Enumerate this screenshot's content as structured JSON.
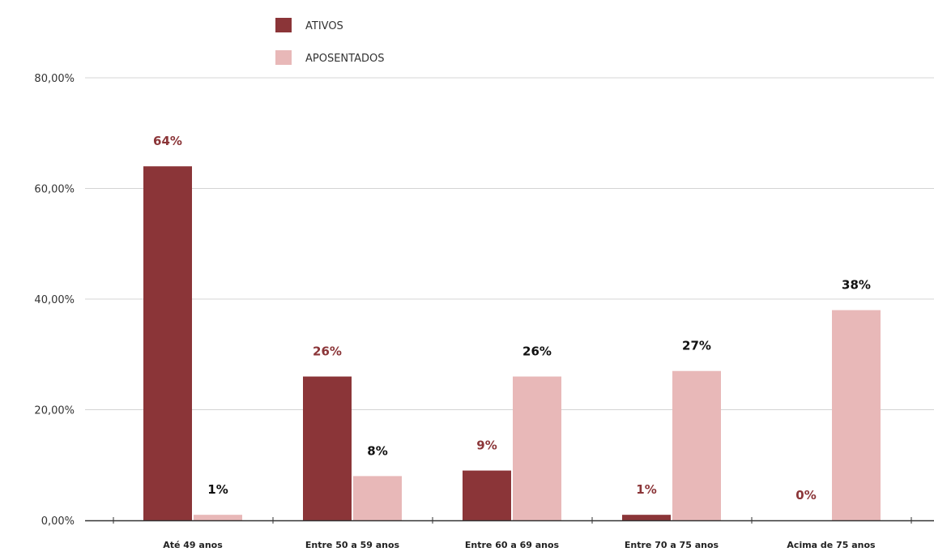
{
  "chart_data": {
    "type": "bar",
    "categories": [
      "Até 49 anos",
      "Entre 50 a 59 anos",
      "Entre 60 a 69 anos",
      "Entre 70 a 75 anos",
      "Acima de 75 anos"
    ],
    "series": [
      {
        "name": "ATIVOS",
        "color": "#8b3538",
        "label_color": "#8b3538",
        "values": [
          64,
          26,
          9,
          1,
          0
        ],
        "labels": [
          "64%",
          "26%",
          "9%",
          "1%",
          "0%"
        ]
      },
      {
        "name": "APOSENTADOS",
        "color": "#e8b8b8",
        "label_color": "#111111",
        "values": [
          1,
          8,
          26,
          27,
          38
        ],
        "labels": [
          "1%",
          "8%",
          "26%",
          "27%",
          "38%"
        ]
      }
    ],
    "ylim": [
      0,
      80
    ],
    "yticks": [
      0,
      20,
      40,
      60,
      80
    ],
    "ytick_labels": [
      "0,00%",
      "20,00%",
      "40,00%",
      "60,00%",
      "80,00%"
    ],
    "grid": true,
    "legend_position": "top-center",
    "title": "",
    "xlabel": "",
    "ylabel": ""
  }
}
